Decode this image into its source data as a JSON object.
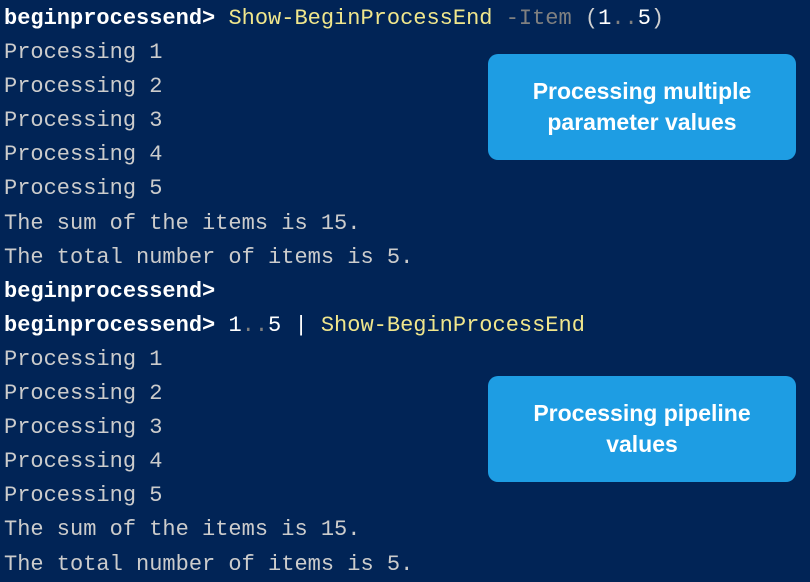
{
  "terminal": {
    "background_color": "#012456",
    "text_color": "#d0d0d0",
    "prompt_color": "#ffffff",
    "cmdlet_color": "#f0e68c",
    "param_color": "#808080",
    "font_family": "Consolas",
    "font_size": 22,
    "block1": {
      "prompt": "beginprocessend>",
      "cmdlet": "Show-BeginProcessEnd",
      "param_name": "-Item",
      "paren_open": "(",
      "num1": "1",
      "dots": "..",
      "num2": "5",
      "paren_close": ")",
      "output": [
        "Processing 1",
        "Processing 2",
        "Processing 3",
        "Processing 4",
        "Processing 5",
        "The sum of the items is 15.",
        "The total number of items is 5."
      ]
    },
    "empty_prompt": "beginprocessend>",
    "block2": {
      "prompt": "beginprocessend>",
      "num1": "1",
      "dots": "..",
      "num2": "5",
      "pipe": "|",
      "cmdlet": "Show-BeginProcessEnd",
      "output": [
        "Processing 1",
        "Processing 2",
        "Processing 3",
        "Processing 4",
        "Processing 5",
        "The sum of the items is 15.",
        "The total number of items is 5."
      ]
    }
  },
  "callouts": {
    "c1": "Processing multiple parameter values",
    "c2": "Processing pipeline values",
    "background_color": "#1e9de3",
    "text_color": "#ffffff",
    "font_size": 23,
    "border_radius": 10
  }
}
